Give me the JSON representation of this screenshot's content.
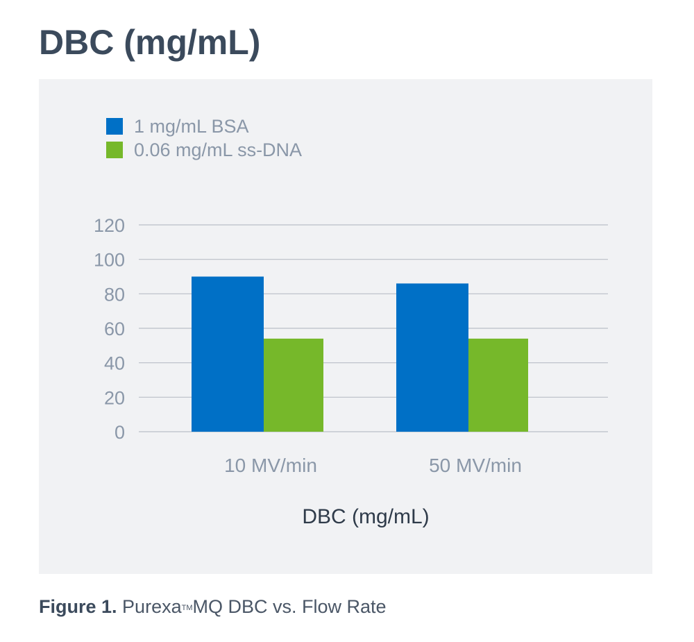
{
  "page": {
    "title": "DBC (mg/mL)"
  },
  "caption": {
    "figure_label": "Figure 1.",
    "text_before_tm": "Purexa",
    "tm": "TM",
    "text_after_tm": "MQ DBC vs. Flow Rate"
  },
  "colors": {
    "series_bsa": "#0070c6",
    "series_dna": "#76b82a",
    "grid": "#b9bec6",
    "panel_bg": "#f1f2f4"
  },
  "chart_data": {
    "type": "bar",
    "title": "",
    "xlabel": "DBC (mg/mL)",
    "ylabel": "",
    "categories": [
      "10 MV/min",
      "50 MV/min"
    ],
    "series": [
      {
        "name": "1 mg/mL BSA",
        "values": [
          90,
          86
        ]
      },
      {
        "name": "0.06 mg/mL ss-DNA",
        "values": [
          54,
          54
        ]
      }
    ],
    "ylim": [
      0,
      120
    ],
    "yticks": [
      0,
      20,
      40,
      60,
      80,
      100,
      120
    ],
    "grid": true,
    "legend_position": "top-left"
  }
}
